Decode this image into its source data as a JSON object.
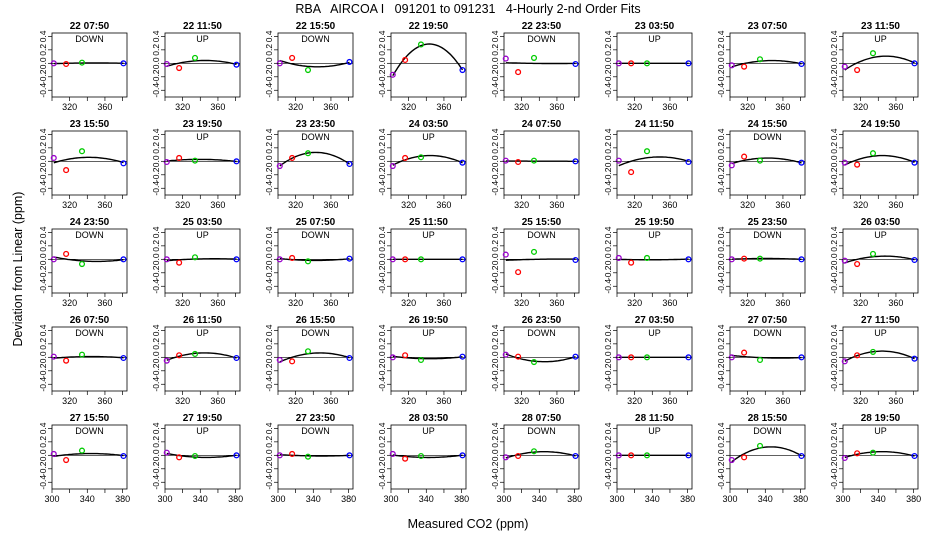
{
  "title": "RBA   AIRCOA I   091201 to 091231   4-Hourly 2-nd Order Fits",
  "xlabel": "Measured CO2 (ppm)",
  "ylabel": "Deviation from Linear (ppm)",
  "xticks": [
    "300",
    "340",
    "380"
  ],
  "xminor": [
    "320",
    "360"
  ],
  "yticks": [
    "-0.4",
    "0.2",
    "0.0",
    "-0.2",
    "0.4"
  ],
  "colors": {
    "p1": "#9900cc",
    "p2": "#ff0000",
    "p3": "#00cc00",
    "p4": "#0000ff"
  },
  "chart_data": {
    "type": "scatter",
    "xlim": [
      300,
      385
    ],
    "ylim": [
      -0.5,
      0.45
    ],
    "standard_x": [
      302,
      316,
      334,
      381
    ],
    "panels": [
      {
        "label": "22 07:50",
        "dir": "DOWN",
        "y": [
          0,
          -0.01,
          0.01,
          0
        ]
      },
      {
        "label": "22 11:50",
        "dir": "UP",
        "y": [
          -0.01,
          -0.07,
          0.08,
          -0.02
        ]
      },
      {
        "label": "22 15:50",
        "dir": "DOWN",
        "y": [
          0,
          0.08,
          -0.1,
          0.02
        ]
      },
      {
        "label": "22 19:50",
        "dir": "",
        "y": [
          -0.17,
          0.05,
          0.28,
          -0.1
        ]
      },
      {
        "label": "22 23:50",
        "dir": "DOWN",
        "y": [
          0.07,
          -0.13,
          0.08,
          -0.01
        ]
      },
      {
        "label": "23 03:50",
        "dir": "UP",
        "y": [
          0,
          0,
          0,
          0
        ]
      },
      {
        "label": "23 07:50",
        "dir": "",
        "y": [
          -0.03,
          -0.05,
          0.06,
          -0.01
        ]
      },
      {
        "label": "23 11:50",
        "dir": "UP",
        "y": [
          -0.05,
          -0.1,
          0.15,
          0
        ]
      },
      {
        "label": "23 15:50",
        "dir": "",
        "y": [
          0.05,
          -0.13,
          0.15,
          -0.03
        ]
      },
      {
        "label": "23 19:50",
        "dir": "UP",
        "y": [
          -0.01,
          0.05,
          0.01,
          0
        ]
      },
      {
        "label": "23 23:50",
        "dir": "DOWN",
        "y": [
          -0.07,
          0.05,
          0.12,
          -0.04
        ]
      },
      {
        "label": "24 03:50",
        "dir": "UP",
        "y": [
          -0.07,
          0.05,
          0.06,
          -0.02
        ]
      },
      {
        "label": "24 07:50",
        "dir": "",
        "y": [
          0.01,
          -0.01,
          0.01,
          0
        ]
      },
      {
        "label": "24 11:50",
        "dir": "",
        "y": [
          0.01,
          -0.16,
          0.15,
          -0.01
        ]
      },
      {
        "label": "24 15:50",
        "dir": "DOWN",
        "y": [
          -0.06,
          0.07,
          0.01,
          -0.02
        ]
      },
      {
        "label": "24 19:50",
        "dir": "",
        "y": [
          -0.02,
          -0.05,
          0.12,
          -0.02
        ]
      },
      {
        "label": "24 23:50",
        "dir": "DOWN",
        "y": [
          0,
          0.08,
          -0.07,
          0
        ]
      },
      {
        "label": "25 03:50",
        "dir": "UP",
        "y": [
          0,
          -0.05,
          0.03,
          0
        ]
      },
      {
        "label": "25 07:50",
        "dir": "DOWN",
        "y": [
          0,
          0.02,
          -0.03,
          0.01
        ]
      },
      {
        "label": "25 11:50",
        "dir": "UP",
        "y": [
          0,
          0,
          0,
          0
        ]
      },
      {
        "label": "25 15:50",
        "dir": "DOWN",
        "y": [
          0.07,
          -0.19,
          0.11,
          -0.01
        ]
      },
      {
        "label": "25 19:50",
        "dir": "UP",
        "y": [
          0.02,
          -0.05,
          0.02,
          0
        ]
      },
      {
        "label": "25 23:50",
        "dir": "DOWN",
        "y": [
          0,
          0.01,
          0.01,
          0
        ]
      },
      {
        "label": "26 03:50",
        "dir": "UP",
        "y": [
          -0.02,
          -0.07,
          0.08,
          -0.01
        ]
      },
      {
        "label": "26 07:50",
        "dir": "DOWN",
        "y": [
          0.01,
          -0.05,
          0.04,
          -0.01
        ]
      },
      {
        "label": "26 11:50",
        "dir": "UP",
        "y": [
          -0.05,
          0.03,
          0.05,
          -0.01
        ]
      },
      {
        "label": "26 15:50",
        "dir": "DOWN",
        "y": [
          -0.04,
          -0.06,
          0.09,
          -0.01
        ]
      },
      {
        "label": "26 19:50",
        "dir": "UP",
        "y": [
          0,
          0.03,
          -0.04,
          0.01
        ]
      },
      {
        "label": "26 23:50",
        "dir": "DOWN",
        "y": [
          0.04,
          0.01,
          -0.07,
          0.01
        ]
      },
      {
        "label": "27 03:50",
        "dir": "UP",
        "y": [
          0,
          0,
          0,
          0
        ]
      },
      {
        "label": "27 07:50",
        "dir": "DOWN",
        "y": [
          0,
          0.07,
          -0.04,
          0
        ]
      },
      {
        "label": "27 11:50",
        "dir": "UP",
        "y": [
          -0.06,
          0.03,
          0.08,
          -0.02
        ]
      },
      {
        "label": "27 15:50",
        "dir": "DOWN",
        "y": [
          0.02,
          -0.07,
          0.07,
          -0.01
        ]
      },
      {
        "label": "27 19:50",
        "dir": "UP",
        "y": [
          0.04,
          -0.03,
          -0.01,
          0
        ]
      },
      {
        "label": "27 23:50",
        "dir": "DOWN",
        "y": [
          0,
          0.02,
          -0.02,
          0
        ]
      },
      {
        "label": "28 03:50",
        "dir": "UP",
        "y": [
          0.02,
          -0.05,
          -0.01,
          0
        ]
      },
      {
        "label": "28 07:50",
        "dir": "DOWN",
        "y": [
          -0.03,
          -0.01,
          0.06,
          -0.01
        ]
      },
      {
        "label": "28 11:50",
        "dir": "UP",
        "y": [
          0,
          0,
          0,
          0
        ]
      },
      {
        "label": "28 15:50",
        "dir": "DOWN",
        "y": [
          -0.07,
          -0.03,
          0.14,
          -0.01
        ]
      },
      {
        "label": "28 19:50",
        "dir": "UP",
        "y": [
          -0.04,
          0.03,
          0.04,
          -0.01
        ]
      }
    ]
  }
}
